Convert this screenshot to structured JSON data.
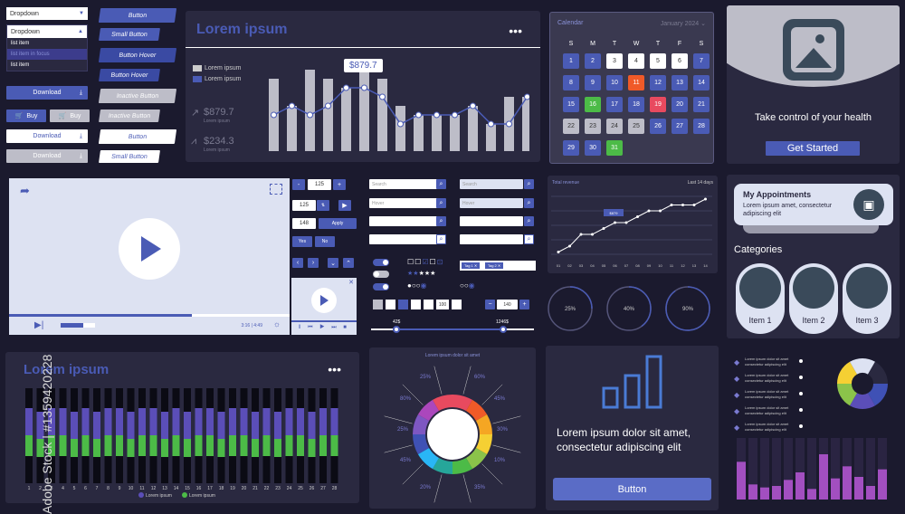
{
  "colors": {
    "bg": "#1b1a2e",
    "panel": "#2a2940",
    "accent": "#4a5bb5",
    "green": "#4cbb47",
    "orange": "#f05a28",
    "red": "#e84a5f"
  },
  "dropdown": {
    "label": "Dropdown",
    "label2": "Dropdown",
    "items": [
      "list item",
      "list item in focus",
      "list item"
    ]
  },
  "buttons": {
    "button": "Button",
    "small_button": "Small Button",
    "button_hover": "Button Hover",
    "button_hover2": "Button Hover",
    "inactive_button": "Inactive Button",
    "inactive_button2": "Inactive Button",
    "download": "Download",
    "buy": "Buy",
    "button_outline": "Button",
    "small_button_outline": "Small Button"
  },
  "chart_panel": {
    "title": "Lorem ipsum",
    "legend": [
      "Lorem ipsum",
      "Lorem ipsum"
    ],
    "tooltip": "$879.7",
    "stat1": "$879.7",
    "stat1_sub": "Lorem ipsum",
    "stat2": "$234.3",
    "stat2_sub": "Lorem ipsum"
  },
  "chart_data": [
    {
      "type": "bar",
      "bars": [
        8,
        5,
        9,
        8,
        7,
        9,
        8,
        5,
        4,
        4,
        4,
        5,
        3,
        6,
        6
      ],
      "line": [
        4,
        5,
        4,
        5,
        7,
        7,
        6,
        3,
        4,
        4,
        4,
        5,
        3,
        3,
        6
      ]
    },
    {
      "type": "line",
      "title": "Total revenue",
      "period": "Last 14 days",
      "x": [
        "01",
        "02",
        "03",
        "04",
        "05",
        "06",
        "07",
        "08",
        "09",
        "10",
        "11",
        "12",
        "13",
        "14"
      ],
      "values": [
        1,
        2,
        4,
        4,
        5,
        6,
        6,
        7,
        8,
        8,
        9,
        9,
        9,
        10
      ],
      "tooltip": "$879"
    },
    {
      "type": "bar",
      "title": "Lorem ipsum",
      "categories": [
        "1",
        "2",
        "3",
        "4",
        "5",
        "6",
        "7",
        "8",
        "9",
        "10",
        "11",
        "12",
        "13",
        "14",
        "15",
        "16",
        "17",
        "18",
        "19",
        "20",
        "21",
        "22",
        "23",
        "24",
        "25",
        "26",
        "27",
        "28"
      ],
      "series": [
        {
          "name": "Lorem ipsum",
          "values": [
            4,
            3,
            4,
            4,
            3,
            4,
            3,
            4,
            4,
            3,
            4,
            4,
            3,
            4,
            3,
            4,
            4,
            3,
            4,
            4,
            3,
            4,
            3,
            4,
            4,
            3,
            4,
            4
          ]
        },
        {
          "name": "Lorem ipsum",
          "values": [
            3,
            2,
            3,
            3,
            2,
            3,
            2,
            3,
            3,
            2,
            3,
            3,
            2,
            3,
            2,
            3,
            3,
            2,
            3,
            3,
            2,
            3,
            2,
            3,
            3,
            2,
            3,
            3
          ]
        }
      ]
    },
    {
      "type": "pie",
      "title": "Lorem ipsum dolor sit amet",
      "labels": [
        "25%",
        "80%",
        "60%",
        "45%",
        "25%",
        "30%",
        "45%",
        "10%",
        "20%",
        "35%",
        "75%",
        "80%"
      ]
    },
    {
      "type": "bar",
      "values": [
        3,
        5,
        8
      ]
    }
  ],
  "calendar": {
    "title": "Calendar",
    "month": "January 2024",
    "weekdays": [
      "S",
      "M",
      "T",
      "W",
      "T",
      "F",
      "S"
    ],
    "days": [
      "1",
      "2",
      "3",
      "4",
      "5",
      "6",
      "7",
      "8",
      "9",
      "10",
      "11",
      "12",
      "13",
      "14",
      "15",
      "16",
      "17",
      "18",
      "19",
      "20",
      "21",
      "22",
      "23",
      "24",
      "25",
      "26",
      "27",
      "28",
      "29",
      "30",
      "31"
    ]
  },
  "hero": {
    "title": "Take control of your health",
    "cta": "Get Started"
  },
  "video": {
    "time": "3:16 | 4:49"
  },
  "form": {
    "stepper1": "125",
    "stepper2": "125",
    "stepper3": "148",
    "apply": "Apply",
    "yes": "Yes",
    "no": "No",
    "page": "100",
    "page2": "140",
    "search": "Search",
    "hover": "Hover",
    "tags": [
      "Tag 1",
      "Tag 2"
    ],
    "range_min": "42$",
    "range_max": "1246$"
  },
  "progress": [
    "25%",
    "40%",
    "90%"
  ],
  "appointments": {
    "title": "My Appointments",
    "text": "Lorem ipsum amet, consectetur adipiscing elit"
  },
  "categories": {
    "title": "Categories",
    "items": [
      "Item 1",
      "Item 2",
      "Item 3"
    ]
  },
  "promo": {
    "text": "Lorem ipsum dolor sit amet, consectetur adipiscing elit",
    "button": "Button"
  },
  "infographic": {
    "rows": [
      "Lorem ipsum dolor sit amet",
      "consectetur adipiscing elit"
    ]
  },
  "watermark": "Adobe Stock | #1359420228"
}
